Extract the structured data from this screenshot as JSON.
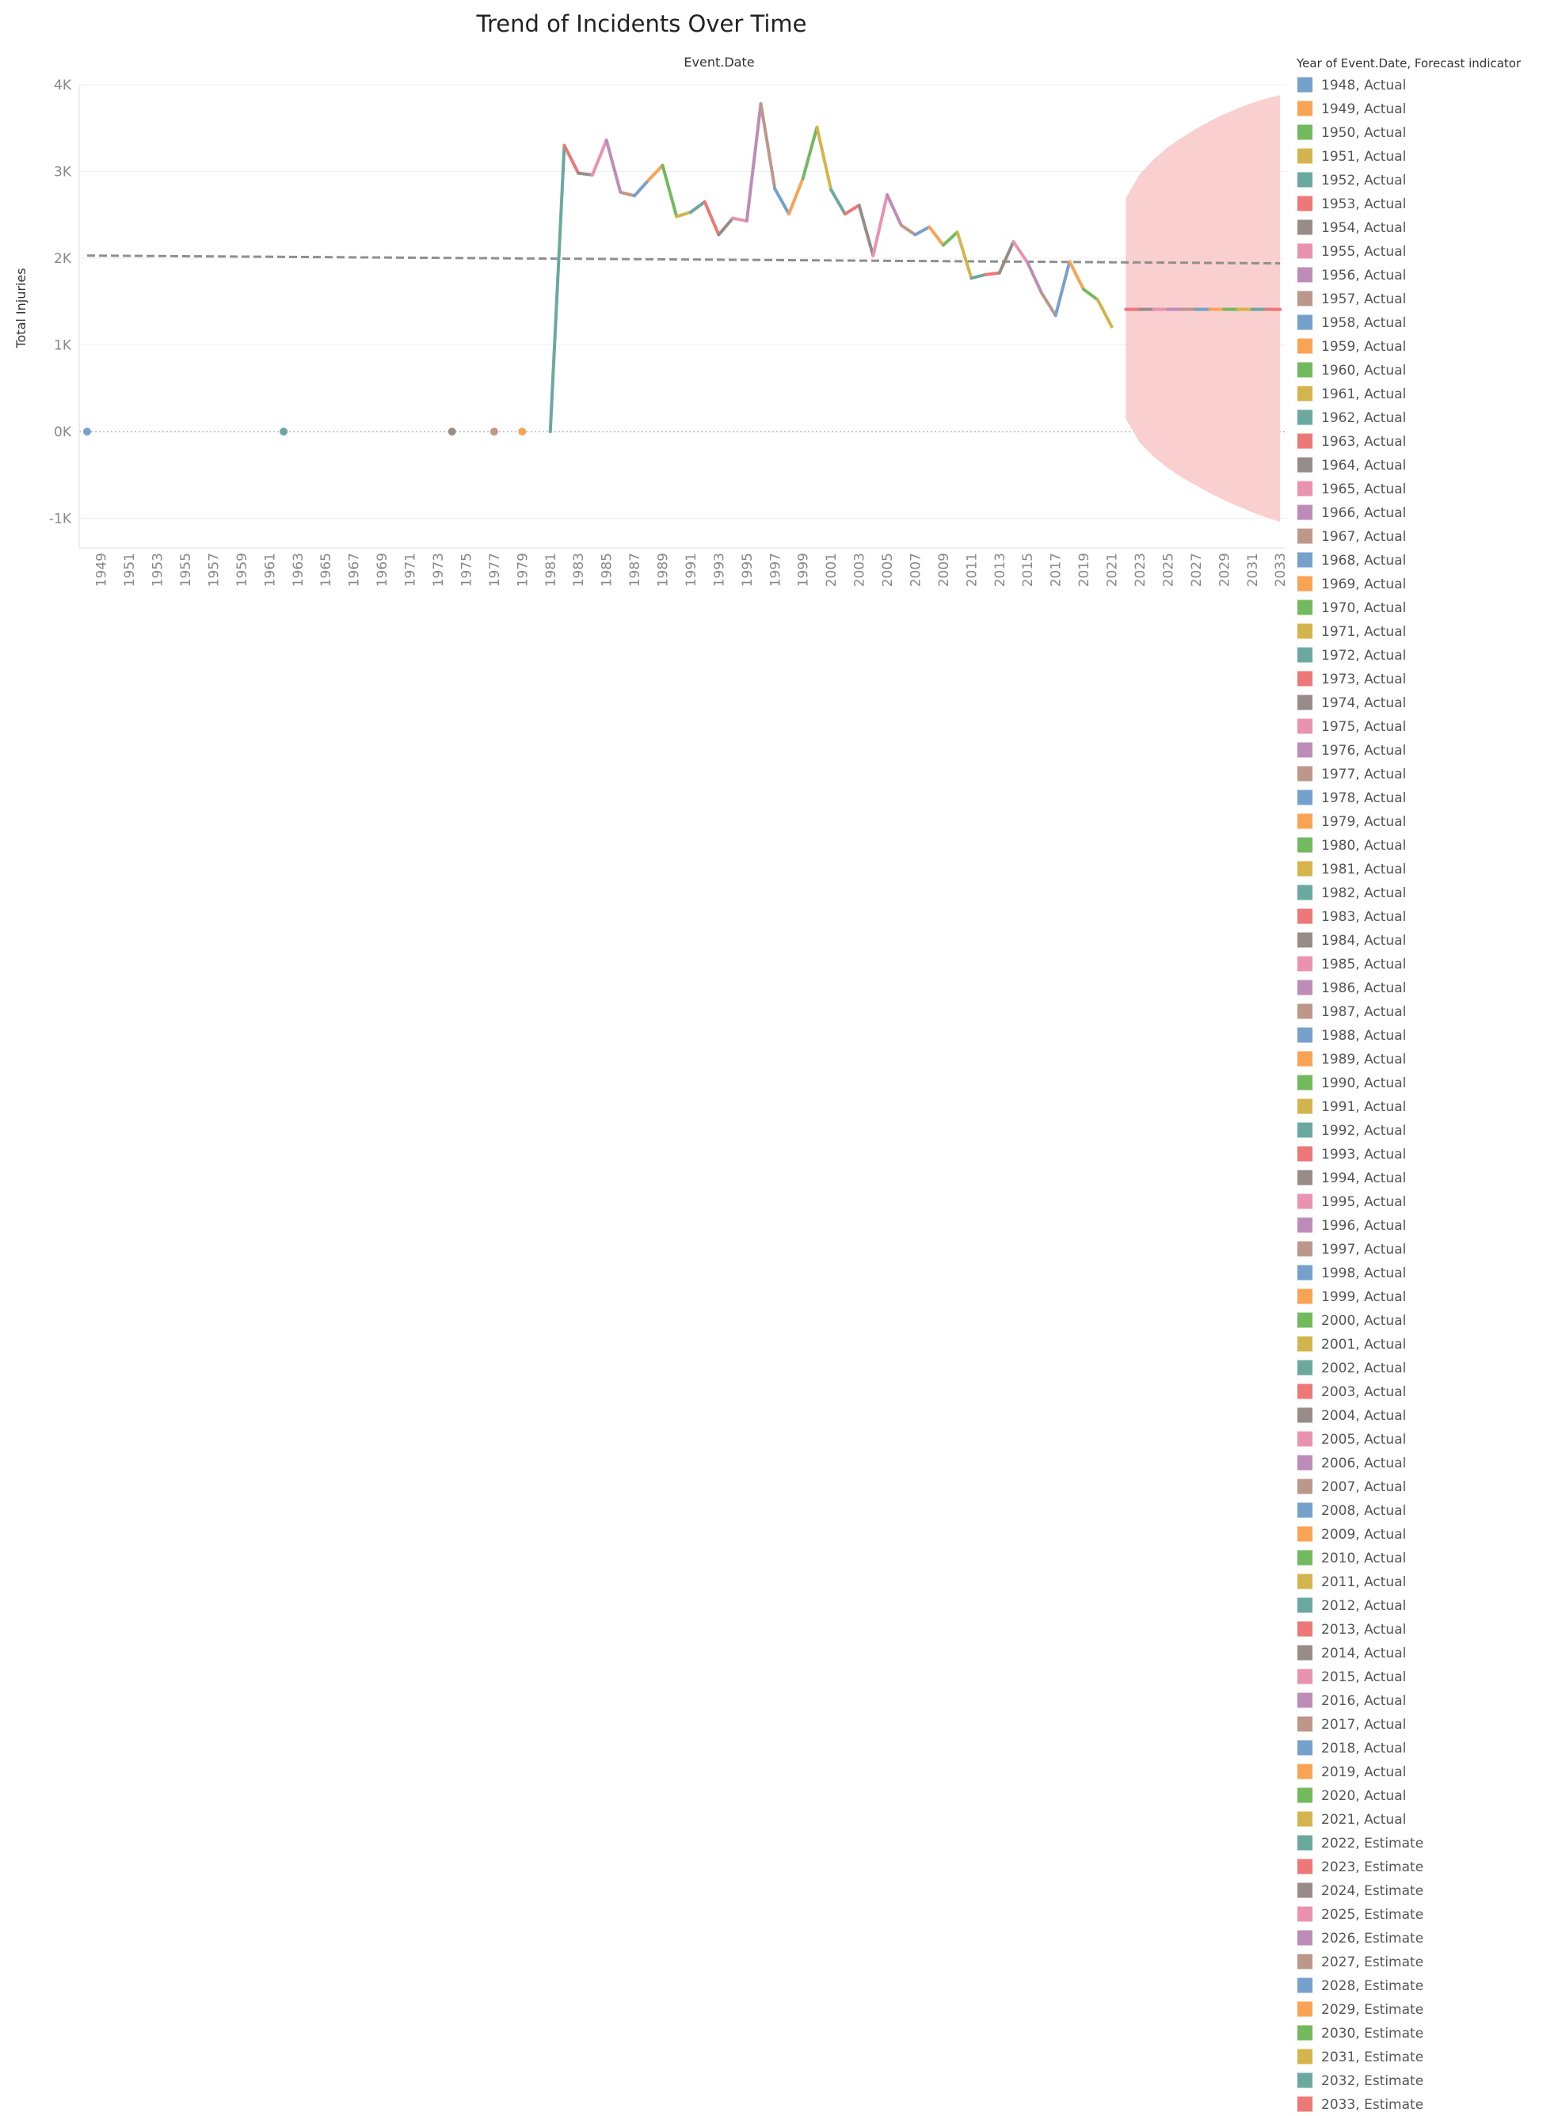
{
  "chart_data": {
    "type": "line",
    "title": "Trend of Incidents Over Time",
    "column_header": "Event.Date",
    "xlabel": "",
    "ylabel": "Total Injuries",
    "ylim": [
      -1300,
      4000
    ],
    "xlim": [
      1948,
      2033
    ],
    "y_ticks": [
      "4K",
      "3K",
      "2K",
      "1K",
      "0K",
      "-1K"
    ],
    "y_tick_values": [
      4000,
      3000,
      2000,
      1000,
      0,
      -1000
    ],
    "x_ticks": [
      "1949",
      "1951",
      "1953",
      "1955",
      "1957",
      "1959",
      "1961",
      "1963",
      "1965",
      "1967",
      "1969",
      "1971",
      "1973",
      "1975",
      "1977",
      "1979",
      "1981",
      "1983",
      "1985",
      "1987",
      "1989",
      "1991",
      "1993",
      "1995",
      "1997",
      "1999",
      "2001",
      "2003",
      "2005",
      "2007",
      "2009",
      "2011",
      "2013",
      "2015",
      "2017",
      "2019",
      "2021",
      "2023",
      "2025",
      "2027",
      "2029",
      "2031",
      "2033"
    ],
    "x_tick_values": [
      1949,
      1951,
      1953,
      1955,
      1957,
      1959,
      1961,
      1963,
      1965,
      1967,
      1969,
      1971,
      1973,
      1975,
      1977,
      1979,
      1981,
      1983,
      1985,
      1987,
      1989,
      1991,
      1993,
      1995,
      1997,
      1999,
      2001,
      2003,
      2005,
      2007,
      2009,
      2011,
      2013,
      2015,
      2017,
      2019,
      2021,
      2023,
      2025,
      2027,
      2029,
      2031,
      2033
    ],
    "grid": true,
    "zero_line": "dotted",
    "legend_placement": "right",
    "legend_title": "Year of Event.Date, Forecast indicator",
    "actual": {
      "x": [
        1948,
        1962,
        1974,
        1977,
        1979,
        1981,
        1982,
        1983,
        1984,
        1985,
        1986,
        1987,
        1988,
        1989,
        1990,
        1991,
        1992,
        1993,
        1994,
        1995,
        1996,
        1997,
        1998,
        1999,
        2000,
        2001,
        2002,
        2003,
        2004,
        2005,
        2006,
        2007,
        2008,
        2009,
        2010,
        2011,
        2012,
        2013,
        2014,
        2015,
        2016,
        2017,
        2018,
        2019,
        2020,
        2021
      ],
      "y": [
        0,
        0,
        0,
        0,
        0,
        0,
        3300,
        2980,
        2960,
        3360,
        2760,
        2720,
        2900,
        3070,
        2480,
        2530,
        2650,
        2270,
        2460,
        2430,
        3780,
        2800,
        2510,
        2920,
        3510,
        2790,
        2510,
        2610,
        2030,
        2730,
        2380,
        2270,
        2360,
        2150,
        2300,
        1770,
        1810,
        1830,
        2190,
        1950,
        1600,
        1340,
        1960,
        1640,
        1520,
        1210
      ],
      "isolated_points": [
        1948,
        1962,
        1974,
        1977,
        1979
      ]
    },
    "estimate": {
      "x": [
        2022,
        2023,
        2024,
        2025,
        2026,
        2027,
        2028,
        2029,
        2030,
        2031,
        2032,
        2033
      ],
      "y": [
        1410,
        1410,
        1410,
        1410,
        1410,
        1410,
        1410,
        1410,
        1410,
        1410,
        1410,
        1410
      ],
      "band_upper": [
        2690,
        2970,
        3140,
        3280,
        3390,
        3490,
        3580,
        3660,
        3730,
        3790,
        3840,
        3880
      ],
      "band_lower": [
        150,
        -130,
        -290,
        -420,
        -530,
        -620,
        -710,
        -790,
        -860,
        -930,
        -990,
        -1040
      ],
      "band_color": "#f9cfcf"
    },
    "trend_line": {
      "x": [
        1948,
        2033
      ],
      "y": [
        2030,
        1940
      ],
      "style": "dashed",
      "color": "#8f8f8f"
    },
    "palette": [
      "#76a1cd",
      "#f9a354",
      "#73b95d",
      "#d3b44d",
      "#6ba8a0",
      "#ee7777",
      "#988c88",
      "#e993b0",
      "#be8cb8",
      "#bd978a"
    ],
    "legend": [
      {
        "label": "1948, Actual"
      },
      {
        "label": "1949, Actual"
      },
      {
        "label": "1950, Actual"
      },
      {
        "label": "1951, Actual"
      },
      {
        "label": "1952, Actual"
      },
      {
        "label": "1953, Actual"
      },
      {
        "label": "1954, Actual"
      },
      {
        "label": "1955, Actual"
      },
      {
        "label": "1956, Actual"
      },
      {
        "label": "1957, Actual"
      },
      {
        "label": "1958, Actual"
      },
      {
        "label": "1959, Actual"
      },
      {
        "label": "1960, Actual"
      },
      {
        "label": "1961, Actual"
      },
      {
        "label": "1962, Actual"
      },
      {
        "label": "1963, Actual"
      },
      {
        "label": "1964, Actual"
      },
      {
        "label": "1965, Actual"
      },
      {
        "label": "1966, Actual"
      },
      {
        "label": "1967, Actual"
      },
      {
        "label": "1968, Actual"
      },
      {
        "label": "1969, Actual"
      },
      {
        "label": "1970, Actual"
      },
      {
        "label": "1971, Actual"
      },
      {
        "label": "1972, Actual"
      },
      {
        "label": "1973, Actual"
      },
      {
        "label": "1974, Actual"
      },
      {
        "label": "1975, Actual"
      },
      {
        "label": "1976, Actual"
      },
      {
        "label": "1977, Actual"
      },
      {
        "label": "1978, Actual"
      },
      {
        "label": "1979, Actual"
      },
      {
        "label": "1980, Actual"
      },
      {
        "label": "1981, Actual"
      },
      {
        "label": "1982, Actual"
      },
      {
        "label": "1983, Actual"
      },
      {
        "label": "1984, Actual"
      },
      {
        "label": "1985, Actual"
      },
      {
        "label": "1986, Actual"
      },
      {
        "label": "1987, Actual"
      },
      {
        "label": "1988, Actual"
      },
      {
        "label": "1989, Actual"
      },
      {
        "label": "1990, Actual"
      },
      {
        "label": "1991, Actual"
      },
      {
        "label": "1992, Actual"
      },
      {
        "label": "1993, Actual"
      },
      {
        "label": "1994, Actual"
      },
      {
        "label": "1995, Actual"
      },
      {
        "label": "1996, Actual"
      },
      {
        "label": "1997, Actual"
      },
      {
        "label": "1998, Actual"
      },
      {
        "label": "1999, Actual"
      },
      {
        "label": "2000, Actual"
      },
      {
        "label": "2001, Actual"
      },
      {
        "label": "2002, Actual"
      },
      {
        "label": "2003, Actual"
      },
      {
        "label": "2004, Actual"
      },
      {
        "label": "2005, Actual"
      },
      {
        "label": "2006, Actual"
      },
      {
        "label": "2007, Actual"
      },
      {
        "label": "2008, Actual"
      },
      {
        "label": "2009, Actual"
      },
      {
        "label": "2010, Actual"
      },
      {
        "label": "2011, Actual"
      },
      {
        "label": "2012, Actual"
      },
      {
        "label": "2013, Actual"
      },
      {
        "label": "2014, Actual"
      },
      {
        "label": "2015, Actual"
      },
      {
        "label": "2016, Actual"
      },
      {
        "label": "2017, Actual"
      },
      {
        "label": "2018, Actual"
      },
      {
        "label": "2019, Actual"
      },
      {
        "label": "2020, Actual"
      },
      {
        "label": "2021, Actual"
      },
      {
        "label": "2022, Estimate"
      },
      {
        "label": "2023, Estimate"
      },
      {
        "label": "2024, Estimate"
      },
      {
        "label": "2025, Estimate"
      },
      {
        "label": "2026, Estimate"
      },
      {
        "label": "2027, Estimate"
      },
      {
        "label": "2028, Estimate"
      },
      {
        "label": "2029, Estimate"
      },
      {
        "label": "2030, Estimate"
      },
      {
        "label": "2031, Estimate"
      },
      {
        "label": "2032, Estimate"
      },
      {
        "label": "2033, Estimate"
      }
    ]
  }
}
